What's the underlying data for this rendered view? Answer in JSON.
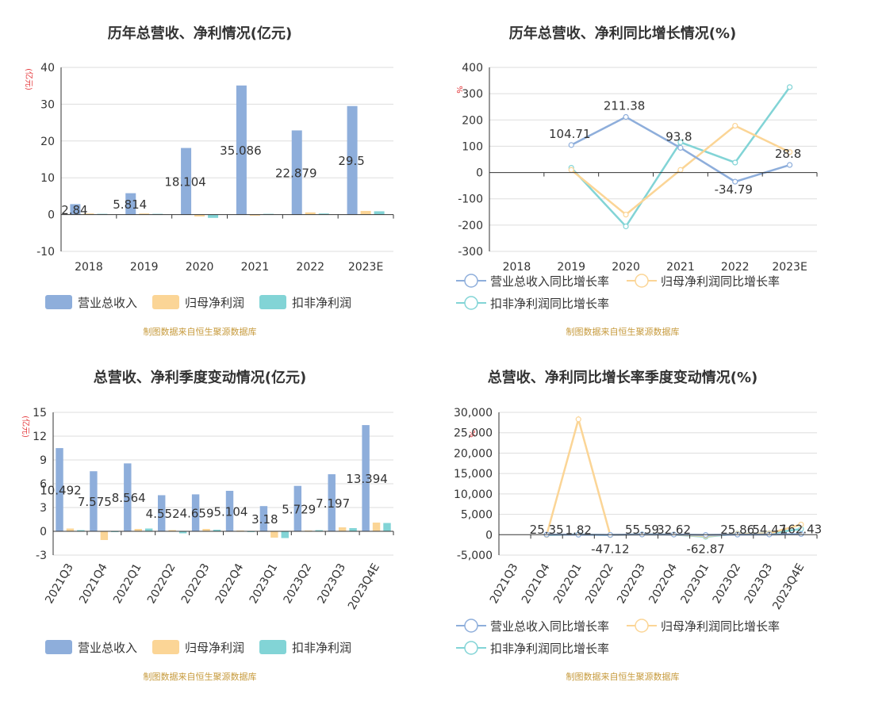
{
  "colors": {
    "revenue": "#8eaedb",
    "net_profit": "#fbd596",
    "deducted": "#82d4d6",
    "grid": "#dddddd",
    "axis": "#333333",
    "source": "#c69a3c",
    "unit": "#e4393c"
  },
  "source_note": "制图数据来自恒生聚源数据库",
  "chart_data": [
    {
      "type": "bar",
      "title": "历年总营收、净利情况(亿元)",
      "unit": "(亿元)",
      "categories": [
        "2018",
        "2019",
        "2020",
        "2021",
        "2022",
        "2023E"
      ],
      "ylim": [
        -10,
        40
      ],
      "yticks": [
        "-10",
        "0",
        "10",
        "20",
        "30",
        "40"
      ],
      "series": [
        {
          "name": "营业总收入",
          "values": [
            2.84,
            5.814,
            18.104,
            35.086,
            22.879,
            29.5
          ],
          "labels": [
            "2.84",
            "5.814",
            "18.104",
            "35.086",
            "22.879",
            "29.5"
          ]
        },
        {
          "name": "归母净利润",
          "values": [
            0.3,
            0.3,
            -0.5,
            -0.3,
            0.6,
            1.0
          ]
        },
        {
          "name": "扣非净利润",
          "values": [
            0.2,
            0.2,
            -0.9,
            0.2,
            0.3,
            0.9
          ]
        }
      ]
    },
    {
      "type": "line",
      "title": "历年总营收、净利同比增长情况(%)",
      "unit": "%",
      "categories": [
        "2018",
        "2019",
        "2020",
        "2021",
        "2022",
        "2023E"
      ],
      "ylim": [
        -300,
        400
      ],
      "yticks": [
        "-300",
        "-200",
        "-100",
        "0",
        "100",
        "200",
        "300",
        "400"
      ],
      "series": [
        {
          "name": "营业总收入同比增长率",
          "values": [
            null,
            104.71,
            211.38,
            93.8,
            -34.79,
            28.8
          ],
          "labels": [
            "",
            "104.71",
            "211.38",
            "93.8",
            "-34.79",
            "28.8"
          ]
        },
        {
          "name": "归母净利润同比增长率",
          "values": [
            null,
            10,
            -160,
            10,
            178,
            78
          ]
        },
        {
          "name": "扣非净利润同比增长率",
          "values": [
            null,
            18,
            -205,
            115,
            38,
            325
          ]
        }
      ]
    },
    {
      "type": "bar",
      "title": "总营收、净利季度变动情况(亿元)",
      "unit": "(亿元)",
      "categories": [
        "2021Q3",
        "2021Q4",
        "2022Q1",
        "2022Q2",
        "2022Q3",
        "2022Q4",
        "2023Q1",
        "2023Q2",
        "2023Q3",
        "2023Q4E"
      ],
      "ylim": [
        -3,
        15
      ],
      "yticks": [
        "-3",
        "0",
        "3",
        "6",
        "9",
        "12",
        "15"
      ],
      "series": [
        {
          "name": "营业总收入",
          "values": [
            10.492,
            7.575,
            8.564,
            4.552,
            4.659,
            5.104,
            3.18,
            5.729,
            7.197,
            13.394
          ],
          "labels": [
            "10.492",
            "7.575",
            "8.564",
            "4.552",
            "4.659",
            "5.104",
            "3.18",
            "5.729",
            "7.197",
            "13.394"
          ]
        },
        {
          "name": "归母净利润",
          "values": [
            0.35,
            -1.1,
            0.3,
            0.15,
            0.3,
            0.1,
            -0.8,
            0.1,
            0.5,
            1.1
          ]
        },
        {
          "name": "扣非净利润",
          "values": [
            0.15,
            -0.05,
            0.35,
            -0.25,
            0.2,
            -0.05,
            -0.85,
            0.15,
            0.4,
            1.05
          ]
        }
      ]
    },
    {
      "type": "line",
      "title": "总营收、净利同比增长率季度变动情况(%)",
      "unit": "%",
      "categories": [
        "2021Q3",
        "2021Q4",
        "2022Q1",
        "2022Q2",
        "2022Q3",
        "2022Q4",
        "2023Q1",
        "2023Q2",
        "2023Q3",
        "2023Q4E"
      ],
      "ylim": [
        -5000,
        30000
      ],
      "yticks": [
        "-5,000",
        "0",
        "5,000",
        "10,000",
        "15,000",
        "20,000",
        "25,000",
        "30,000"
      ],
      "series": [
        {
          "name": "营业总收入同比增长率",
          "values": [
            null,
            25.35,
            1.82,
            -47.12,
            55.59,
            32.62,
            -62.87,
            25.86,
            54.47,
            162.43
          ],
          "labels": [
            "",
            "25.35",
            "1.82",
            "-47.12",
            "55.59",
            "32.62",
            "-62.87",
            "25.86",
            "54.47",
            "162.43"
          ]
        },
        {
          "name": "归母净利润同比增长率",
          "values": [
            null,
            -80,
            28300,
            -100,
            40,
            30,
            -300,
            200,
            300,
            2500
          ]
        },
        {
          "name": "扣非净利润同比增长率",
          "values": [
            null,
            -60,
            60,
            -80,
            80,
            40,
            -500,
            250,
            350,
            1400
          ]
        }
      ]
    }
  ]
}
